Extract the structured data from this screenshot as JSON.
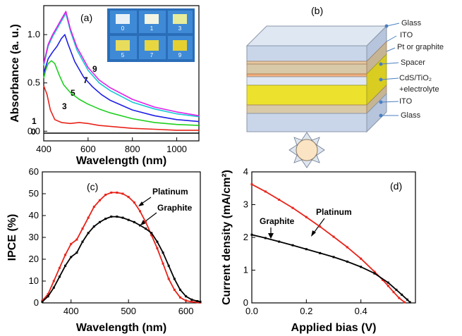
{
  "chart_data": [
    {
      "panel": "(a)",
      "type": "line",
      "xlabel": "Wavelength (nm)",
      "ylabel": "Absorbance (a. u.)",
      "xlim": [
        400,
        1100
      ],
      "ylim": [
        -0.1,
        1.3
      ],
      "xticks": [
        400,
        600,
        800,
        1000
      ],
      "yticks": [
        0.0,
        0.5,
        1.0
      ],
      "ytick_labels": [
        "0.0",
        "0.5",
        "1.0"
      ],
      "series": [
        {
          "name": "0",
          "color": "#000000",
          "x": [
            400,
            450,
            500,
            600,
            700,
            800,
            900,
            1000,
            1100
          ],
          "y": [
            -0.02,
            -0.02,
            -0.02,
            -0.02,
            -0.02,
            -0.02,
            -0.02,
            -0.02,
            -0.02
          ]
        },
        {
          "name": "1",
          "color": "#e8231a",
          "x": [
            400,
            415,
            430,
            450,
            480,
            520,
            560,
            600,
            650,
            700,
            800,
            900,
            1000,
            1100
          ],
          "y": [
            0.47,
            0.38,
            0.22,
            0.12,
            0.09,
            0.08,
            0.09,
            0.08,
            0.06,
            0.05,
            0.03,
            0.02,
            0.01,
            0.01
          ]
        },
        {
          "name": "3",
          "color": "#1fd01f",
          "x": [
            400,
            410,
            420,
            435,
            450,
            470,
            490,
            520,
            560,
            600,
            650,
            700,
            800,
            900,
            1000,
            1100
          ],
          "y": [
            0.55,
            0.64,
            0.7,
            0.73,
            0.7,
            0.58,
            0.48,
            0.4,
            0.33,
            0.28,
            0.23,
            0.19,
            0.13,
            0.09,
            0.07,
            0.06
          ]
        },
        {
          "name": "5",
          "color": "#1f1fe6",
          "x": [
            400,
            420,
            440,
            460,
            480,
            495,
            510,
            540,
            580,
            620,
            660,
            700,
            800,
            900,
            1000,
            1100
          ],
          "y": [
            0.6,
            0.75,
            0.82,
            0.88,
            0.96,
            1.0,
            0.9,
            0.72,
            0.56,
            0.46,
            0.38,
            0.32,
            0.22,
            0.16,
            0.12,
            0.1
          ]
        },
        {
          "name": "7",
          "color": "#16c7d6",
          "x": [
            400,
            420,
            440,
            460,
            480,
            500,
            520,
            550,
            600,
            650,
            700,
            800,
            900,
            1000,
            1100
          ],
          "y": [
            0.68,
            0.88,
            0.98,
            1.06,
            1.14,
            1.22,
            1.04,
            0.84,
            0.63,
            0.5,
            0.42,
            0.3,
            0.23,
            0.18,
            0.15
          ]
        },
        {
          "name": "9",
          "color": "#e020e8",
          "x": [
            400,
            420,
            440,
            460,
            480,
            500,
            520,
            550,
            600,
            650,
            700,
            800,
            900,
            1000,
            1100
          ],
          "y": [
            0.7,
            0.9,
            1.0,
            1.08,
            1.16,
            1.24,
            1.06,
            0.87,
            0.66,
            0.53,
            0.45,
            0.33,
            0.25,
            0.2,
            0.16
          ]
        }
      ],
      "curve_labels": [
        "0",
        "1",
        "3",
        "5",
        "7",
        "9"
      ],
      "inset_vials": [
        "0",
        "1",
        "3",
        "5",
        "7",
        "9"
      ]
    },
    {
      "panel": "(c)",
      "type": "line",
      "xlabel": "Wavelength (nm)",
      "ylabel": "IPCE (%)",
      "xlim": [
        350,
        625
      ],
      "ylim": [
        0,
        60
      ],
      "xticks": [
        400,
        500,
        600
      ],
      "yticks": [
        0,
        10,
        20,
        30,
        40,
        50,
        60
      ],
      "series": [
        {
          "name": "Platinum",
          "color": "#e8231a",
          "x": [
            350,
            360,
            370,
            380,
            390,
            400,
            410,
            420,
            430,
            440,
            450,
            460,
            470,
            480,
            490,
            500,
            510,
            520,
            530,
            540,
            550,
            560,
            570,
            580,
            590,
            600,
            610,
            620,
            625
          ],
          "y": [
            1,
            4,
            10,
            16,
            22,
            27,
            29,
            34,
            39,
            44,
            47,
            49.5,
            50.5,
            50.5,
            50,
            48.5,
            46,
            42,
            37,
            31,
            25,
            18,
            11,
            6,
            2.5,
            1,
            0.5,
            0.3,
            0.2
          ]
        },
        {
          "name": "Graphite",
          "color": "#000000",
          "x": [
            350,
            360,
            370,
            380,
            390,
            400,
            410,
            420,
            430,
            440,
            450,
            460,
            470,
            480,
            490,
            500,
            510,
            520,
            530,
            540,
            550,
            560,
            570,
            580,
            590,
            600,
            610,
            620,
            625
          ],
          "y": [
            0.5,
            3,
            7,
            12,
            17,
            21,
            23,
            28,
            32,
            35,
            37,
            38.5,
            39.5,
            39.5,
            39,
            38,
            37,
            35.5,
            34,
            32,
            28,
            23,
            17,
            11,
            6,
            3,
            1.5,
            0.8,
            0.5
          ]
        }
      ]
    },
    {
      "panel": "(d)",
      "type": "line",
      "xlabel": "Applied bias (V)",
      "ylabel": "Current density (mA/cm²)",
      "xlim": [
        0.0,
        0.6
      ],
      "ylim": [
        0,
        4
      ],
      "xticks": [
        0.0,
        0.2,
        0.4
      ],
      "xtick_labels": [
        "0.0",
        "0.2",
        "0.4"
      ],
      "yticks": [
        0,
        1,
        2,
        3,
        4
      ],
      "series": [
        {
          "name": "Platinum",
          "color": "#e8231a",
          "x": [
            0.0,
            0.05,
            0.1,
            0.15,
            0.2,
            0.25,
            0.3,
            0.35,
            0.4,
            0.45,
            0.48,
            0.5,
            0.52,
            0.54,
            0.56
          ],
          "y": [
            3.62,
            3.4,
            3.15,
            2.9,
            2.62,
            2.33,
            2.02,
            1.7,
            1.35,
            0.95,
            0.7,
            0.52,
            0.33,
            0.15,
            0.02
          ]
        },
        {
          "name": "Graphite",
          "color": "#000000",
          "x": [
            0.0,
            0.05,
            0.1,
            0.15,
            0.2,
            0.25,
            0.3,
            0.35,
            0.4,
            0.45,
            0.5,
            0.53,
            0.55,
            0.57,
            0.58
          ],
          "y": [
            2.08,
            1.98,
            1.87,
            1.76,
            1.64,
            1.52,
            1.4,
            1.26,
            1.1,
            0.9,
            0.62,
            0.4,
            0.25,
            0.1,
            0.02
          ]
        }
      ]
    }
  ],
  "panels": {
    "a": {
      "tag": "(a)"
    },
    "b": {
      "tag": "(b)"
    },
    "c": {
      "tag": "(c)"
    },
    "d": {
      "tag": "(d)"
    }
  },
  "annotations": {
    "c_platinum": "Platinum",
    "c_graphite": "Graphite",
    "d_platinum": "Platinum",
    "d_graphite": "Graphite"
  },
  "diagram": {
    "layers": [
      "Glass",
      "ITO",
      "Pt or graphite",
      "Spacer",
      "CdS/TiO₂",
      "+electrolyte",
      "ITO",
      "Glass"
    ],
    "colors": {
      "glass_top": "#c9d6ea",
      "spacer": "#d8c9a8",
      "ito": "#e7c7a0",
      "pt": "#f0b080",
      "electrolyte": "#ece22d",
      "glass_bottom": "#c9d6ea",
      "label_dot": "#4a7fc1",
      "sun": "#fbe4c4"
    }
  }
}
